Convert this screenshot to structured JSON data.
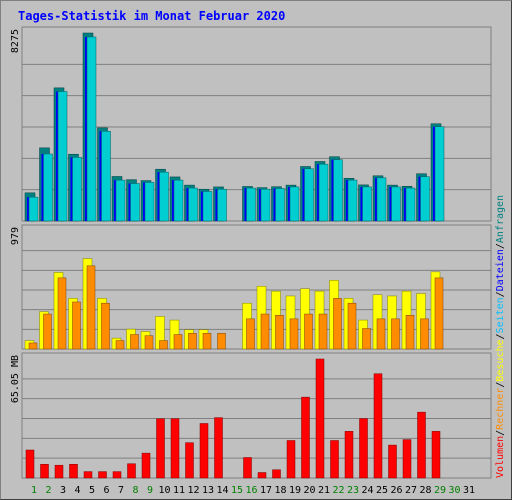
{
  "title": "Tages-Statistik im Monat Februar 2020",
  "colors": {
    "background": "#c0c0c0",
    "grid": "#808080",
    "title": "#0000ff",
    "weekday_label": "#000000",
    "weekend_label": "#008000",
    "anfragen": "#00ced1",
    "anfragen_shadow": "#008080",
    "dateien": "#0000ff",
    "seiten": "#00bfff",
    "besuche": "#ffff00",
    "rechner": "#ff8c00",
    "volumen": "#ff0000",
    "separator": "#000000"
  },
  "legend": {
    "anfragen": "Anfragen",
    "dateien": "Dateien",
    "seiten": "Seiten",
    "besuche": "Besuche",
    "rechner": "Rechner",
    "volumen": "Volumen",
    "separator": "/"
  },
  "chart_data": [
    {
      "type": "bar",
      "title": "Tages-Statistik im Monat Februar 2020",
      "panel": "top",
      "ylabel": "8275",
      "ylim": [
        0,
        8275
      ],
      "grid": true,
      "categories": [
        "1",
        "2",
        "3",
        "4",
        "5",
        "6",
        "7",
        "8",
        "9",
        "10",
        "11",
        "12",
        "13",
        "14",
        "15",
        "16",
        "17",
        "18",
        "19",
        "20",
        "21",
        "22",
        "23",
        "24",
        "25",
        "26",
        "27",
        "28",
        "29",
        "30",
        "31"
      ],
      "weekend_days": [
        "1",
        "2",
        "8",
        "9",
        "15",
        "16",
        "22",
        "23",
        "29",
        "30"
      ],
      "series": [
        {
          "name": "Anfragen",
          "values": [
            1240,
            3220,
            5860,
            2940,
            8275,
            4100,
            1960,
            1820,
            1780,
            2280,
            1940,
            1580,
            1400,
            1500,
            null,
            1520,
            1470,
            1510,
            1580,
            2400,
            2620,
            2830,
            1880,
            1590,
            1990,
            1580,
            1530,
            2080,
            4280,
            null,
            null
          ]
        },
        {
          "name": "Dateien",
          "values": [
            1050,
            2950,
            5700,
            2800,
            8100,
            3950,
            1800,
            1650,
            1700,
            2150,
            1800,
            1450,
            1300,
            1400,
            null,
            1450,
            1400,
            1430,
            1500,
            2300,
            2500,
            2700,
            1800,
            1500,
            1900,
            1500,
            1450,
            1950,
            4150,
            null,
            null
          ]
        },
        {
          "name": "Seiten",
          "values": [
            1050,
            2950,
            5700,
            2800,
            8100,
            3950,
            1800,
            1650,
            1700,
            2150,
            1800,
            1450,
            1300,
            1400,
            null,
            1450,
            1400,
            1430,
            1500,
            2300,
            2500,
            2700,
            1800,
            1500,
            1900,
            1500,
            1450,
            1950,
            4150,
            null,
            null
          ]
        }
      ]
    },
    {
      "type": "bar",
      "panel": "middle",
      "ylabel": "979",
      "ylim": [
        0,
        979
      ],
      "grid": true,
      "categories": [
        "1",
        "2",
        "3",
        "4",
        "5",
        "6",
        "7",
        "8",
        "9",
        "10",
        "11",
        "12",
        "13",
        "14",
        "15",
        "16",
        "17",
        "18",
        "19",
        "20",
        "21",
        "22",
        "23",
        "24",
        "25",
        "26",
        "27",
        "28",
        "29",
        "30",
        "31"
      ],
      "series": [
        {
          "name": "Besuche",
          "values": [
            70,
            310,
            635,
            420,
            750,
            420,
            90,
            165,
            145,
            270,
            240,
            160,
            160,
            null,
            null,
            380,
            520,
            480,
            440,
            500,
            480,
            570,
            420,
            240,
            450,
            440,
            480,
            460,
            640,
            null,
            null
          ]
        },
        {
          "name": "Rechner",
          "values": [
            50,
            290,
            590,
            390,
            690,
            380,
            70,
            120,
            110,
            70,
            120,
            130,
            130,
            130,
            null,
            250,
            290,
            280,
            250,
            290,
            290,
            420,
            380,
            170,
            250,
            250,
            280,
            250,
            590,
            null,
            null
          ]
        }
      ]
    },
    {
      "type": "bar",
      "panel": "bottom",
      "ylabel": "65.05 MB",
      "ylim": [
        0,
        65.05
      ],
      "grid": true,
      "categories": [
        "1",
        "2",
        "3",
        "4",
        "5",
        "6",
        "7",
        "8",
        "9",
        "10",
        "11",
        "12",
        "13",
        "14",
        "15",
        "16",
        "17",
        "18",
        "19",
        "20",
        "21",
        "22",
        "23",
        "24",
        "25",
        "26",
        "27",
        "28",
        "29",
        "30",
        "31"
      ],
      "series": [
        {
          "name": "Volumen",
          "values": [
            15.3,
            7.5,
            7.0,
            7.5,
            3.5,
            3.5,
            3.5,
            7.8,
            13.6,
            32.4,
            32.4,
            19.3,
            29.8,
            33.0,
            null,
            11.2,
            3.0,
            4.5,
            20.5,
            44.2,
            65.05,
            20.5,
            25.5,
            32.5,
            57.0,
            18.0,
            21.0,
            36.0,
            25.5,
            null,
            null
          ]
        }
      ]
    }
  ]
}
